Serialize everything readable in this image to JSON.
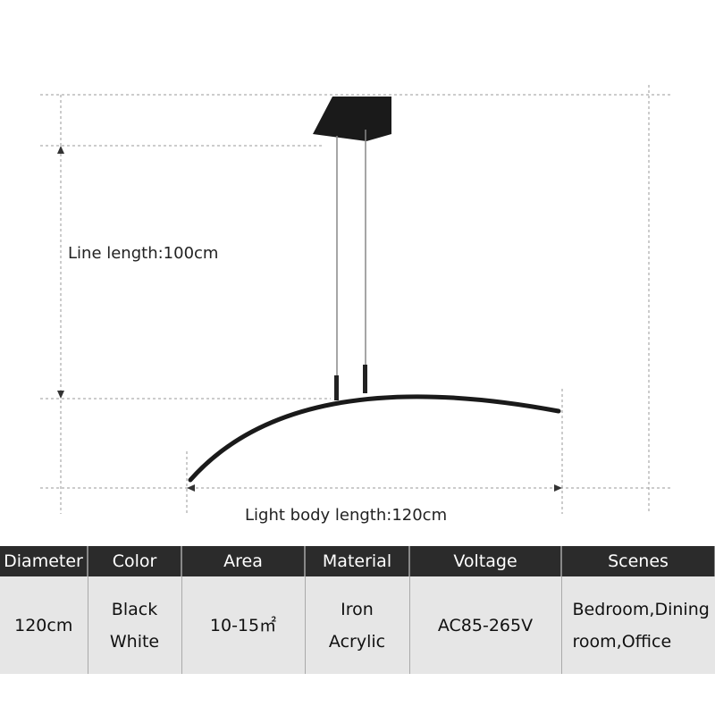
{
  "labels": {
    "line_length": "Line length:100cm",
    "body_length": "Light body length:120cm"
  },
  "spec_table": {
    "headers": [
      "Diameter",
      "Color",
      "Area",
      "Material",
      "Voltage",
      "Scenes"
    ],
    "values": [
      "120cm",
      "Black\nWhite",
      "10-15㎡",
      "Iron\nAcrylic",
      "AC85-265V",
      "Bedroom,Dining\nroom,Office"
    ]
  }
}
